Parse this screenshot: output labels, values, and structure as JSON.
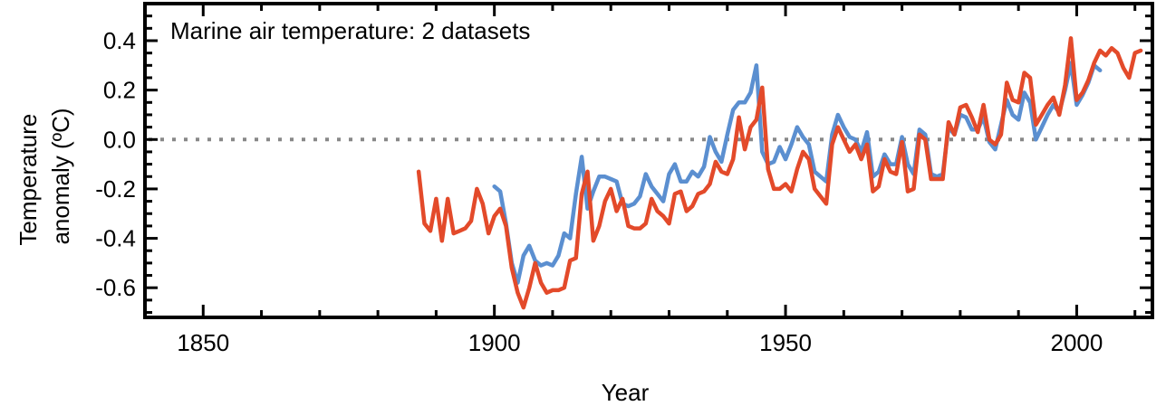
{
  "chart_data": {
    "type": "line",
    "title": "Marine air temperature: 2 datasets",
    "xlabel": "Year",
    "ylabel_lines": [
      "Temperature",
      "anomaly (ºC)"
    ],
    "xlim": [
      1840,
      2013
    ],
    "ylim": [
      -0.72,
      0.55
    ],
    "x_ticks": [
      1850,
      1900,
      1950,
      2000
    ],
    "y_ticks": [
      -0.6,
      -0.4,
      -0.2,
      0.0,
      0.2,
      0.4
    ],
    "y_tick_labels": [
      "-0.6",
      "-0.4",
      "-0.2",
      "0.0",
      "0.2",
      "0.4"
    ],
    "zero_line": {
      "value": 0.0,
      "style": "dotted",
      "color": "#888888"
    },
    "legend": "none",
    "grid": false,
    "series": [
      {
        "color": "#5b8fd0",
        "x": [
          1900,
          1901,
          1902,
          1903,
          1904,
          1905,
          1906,
          1907,
          1908,
          1909,
          1910,
          1911,
          1912,
          1913,
          1914,
          1915,
          1916,
          1917,
          1918,
          1919,
          1920,
          1921,
          1922,
          1923,
          1924,
          1925,
          1926,
          1927,
          1928,
          1929,
          1930,
          1931,
          1932,
          1933,
          1934,
          1935,
          1936,
          1937,
          1938,
          1939,
          1940,
          1941,
          1942,
          1943,
          1944,
          1945,
          1946,
          1947,
          1948,
          1949,
          1950,
          1951,
          1952,
          1953,
          1954,
          1955,
          1956,
          1957,
          1958,
          1959,
          1960,
          1961,
          1962,
          1963,
          1964,
          1965,
          1966,
          1967,
          1968,
          1969,
          1970,
          1971,
          1972,
          1973,
          1974,
          1975,
          1976,
          1977,
          1978,
          1979,
          1980,
          1981,
          1982,
          1983,
          1984,
          1985,
          1986,
          1987,
          1988,
          1989,
          1990,
          1991,
          1992,
          1993,
          1994,
          1995,
          1996,
          1997,
          1998,
          1999,
          2000,
          2001,
          2002,
          2003,
          2004
        ],
        "values": [
          -0.19,
          -0.21,
          -0.34,
          -0.5,
          -0.58,
          -0.47,
          -0.43,
          -0.49,
          -0.51,
          -0.5,
          -0.51,
          -0.47,
          -0.38,
          -0.4,
          -0.22,
          -0.07,
          -0.28,
          -0.21,
          -0.15,
          -0.15,
          -0.16,
          -0.17,
          -0.26,
          -0.27,
          -0.26,
          -0.23,
          -0.14,
          -0.19,
          -0.22,
          -0.25,
          -0.14,
          -0.1,
          -0.17,
          -0.17,
          -0.13,
          -0.15,
          -0.11,
          0.01,
          -0.05,
          -0.09,
          0.02,
          0.12,
          0.15,
          0.15,
          0.19,
          0.3,
          -0.05,
          -0.1,
          -0.09,
          -0.03,
          -0.08,
          -0.02,
          0.05,
          0.01,
          -0.02,
          -0.13,
          -0.15,
          -0.17,
          0.02,
          0.1,
          0.05,
          0.01,
          0.0,
          -0.05,
          0.03,
          -0.15,
          -0.13,
          -0.06,
          -0.1,
          -0.1,
          0.01,
          -0.1,
          -0.14,
          0.04,
          0.02,
          -0.14,
          -0.15,
          -0.14,
          0.05,
          0.02,
          0.1,
          0.09,
          0.04,
          0.04,
          0.09,
          -0.01,
          -0.04,
          0.06,
          0.16,
          0.1,
          0.08,
          0.19,
          0.15,
          0.0,
          0.05,
          0.1,
          0.14,
          0.11,
          0.2,
          0.31,
          0.14,
          0.18,
          0.23,
          0.3,
          0.28
        ]
      },
      {
        "color": "#e34a2a",
        "x": [
          1887,
          1888,
          1889,
          1890,
          1891,
          1892,
          1893,
          1894,
          1895,
          1896,
          1897,
          1898,
          1899,
          1900,
          1901,
          1902,
          1903,
          1904,
          1905,
          1906,
          1907,
          1908,
          1909,
          1910,
          1911,
          1912,
          1913,
          1914,
          1915,
          1916,
          1917,
          1918,
          1919,
          1920,
          1921,
          1922,
          1923,
          1924,
          1925,
          1926,
          1927,
          1928,
          1929,
          1930,
          1931,
          1932,
          1933,
          1934,
          1935,
          1936,
          1937,
          1938,
          1939,
          1940,
          1941,
          1942,
          1943,
          1944,
          1945,
          1946,
          1947,
          1948,
          1949,
          1950,
          1951,
          1952,
          1953,
          1954,
          1955,
          1956,
          1957,
          1958,
          1959,
          1960,
          1961,
          1962,
          1963,
          1964,
          1965,
          1966,
          1967,
          1968,
          1969,
          1970,
          1971,
          1972,
          1973,
          1974,
          1975,
          1976,
          1977,
          1978,
          1979,
          1980,
          1981,
          1982,
          1983,
          1984,
          1985,
          1986,
          1987,
          1988,
          1989,
          1990,
          1991,
          1992,
          1993,
          1994,
          1995,
          1996,
          1997,
          1998,
          1999,
          2000,
          2001,
          2002,
          2003,
          2004,
          2005,
          2006,
          2007,
          2008,
          2009,
          2010,
          2011
        ],
        "values": [
          -0.13,
          -0.34,
          -0.37,
          -0.24,
          -0.41,
          -0.24,
          -0.38,
          -0.37,
          -0.36,
          -0.33,
          -0.2,
          -0.26,
          -0.38,
          -0.31,
          -0.28,
          -0.35,
          -0.52,
          -0.62,
          -0.68,
          -0.6,
          -0.5,
          -0.58,
          -0.62,
          -0.61,
          -0.61,
          -0.6,
          -0.49,
          -0.48,
          -0.22,
          -0.13,
          -0.41,
          -0.35,
          -0.25,
          -0.2,
          -0.29,
          -0.24,
          -0.35,
          -0.36,
          -0.36,
          -0.34,
          -0.24,
          -0.29,
          -0.31,
          -0.34,
          -0.22,
          -0.21,
          -0.29,
          -0.27,
          -0.22,
          -0.21,
          -0.18,
          -0.09,
          -0.13,
          -0.14,
          -0.08,
          0.09,
          -0.04,
          0.05,
          0.08,
          0.21,
          -0.12,
          -0.2,
          -0.2,
          -0.18,
          -0.21,
          -0.12,
          -0.05,
          -0.08,
          -0.2,
          -0.23,
          -0.26,
          -0.02,
          0.05,
          0.0,
          -0.05,
          -0.02,
          -0.08,
          -0.02,
          -0.21,
          -0.19,
          -0.08,
          -0.13,
          -0.14,
          -0.01,
          -0.21,
          -0.2,
          0.02,
          0.0,
          -0.16,
          -0.16,
          -0.16,
          0.07,
          0.02,
          0.13,
          0.14,
          0.09,
          0.03,
          0.14,
          0.0,
          -0.02,
          0.02,
          0.23,
          0.16,
          0.15,
          0.27,
          0.25,
          0.06,
          0.1,
          0.14,
          0.17,
          0.1,
          0.22,
          0.41,
          0.16,
          0.19,
          0.24,
          0.31,
          0.36,
          0.34,
          0.37,
          0.35,
          0.29,
          0.25,
          0.35,
          0.36
        ]
      }
    ]
  }
}
